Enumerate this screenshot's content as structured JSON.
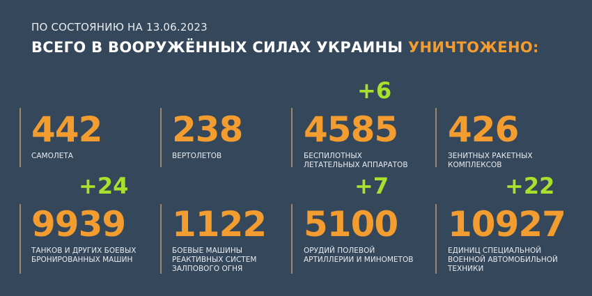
{
  "header": {
    "date_line": "ПО СОСТОЯНИЮ НА 13.06.2023",
    "title_main": "ВСЕГО В ВООРУЖЁННЫХ СИЛАХ УКРАИНЫ",
    "title_accent": "УНИЧТОЖЕНО:"
  },
  "colors": {
    "background": "#35475b",
    "number": "#f39c2f",
    "delta": "#a8e12d",
    "divider": "#9c8a63"
  },
  "stats": [
    {
      "value": "442",
      "label_lines": [
        "САМОЛЕТА"
      ],
      "delta": ""
    },
    {
      "value": "238",
      "label_lines": [
        "ВЕРТОЛЕТОВ"
      ],
      "delta": ""
    },
    {
      "value": "4585",
      "label_lines": [
        "БЕСПИЛОТНЫХ",
        "ЛЕТАТЕЛЬНЫХ АППАРАТОВ"
      ],
      "delta": "+6"
    },
    {
      "value": "426",
      "label_lines": [
        "ЗЕНИТНЫХ РАКЕТНЫХ",
        "КОМПЛЕКСОВ"
      ],
      "delta": ""
    },
    {
      "value": "9939",
      "label_lines": [
        "ТАНКОВ И ДРУГИХ БОЕВЫХ",
        "БРОНИРОВАННЫХ МАШИН"
      ],
      "delta": "+24"
    },
    {
      "value": "1122",
      "label_lines": [
        "БОЕВЫЕ МАШИНЫ",
        "РЕАКТИВНЫХ СИСТЕМ",
        "ЗАЛПОВОГО ОГНЯ"
      ],
      "delta": ""
    },
    {
      "value": "5100",
      "label_lines": [
        "ОРУДИЙ ПОЛЕВОЙ",
        "АРТИЛЛЕРИИ И МИНОМЕТОВ"
      ],
      "delta": "+7"
    },
    {
      "value": "10927",
      "label_lines": [
        "ЕДИНИЦ СПЕЦИАЛЬНОЙ",
        "ВОЕННОЙ АВТОМОБИЛЬНОЙ",
        "ТЕХНИКИ"
      ],
      "delta": "+22"
    }
  ]
}
